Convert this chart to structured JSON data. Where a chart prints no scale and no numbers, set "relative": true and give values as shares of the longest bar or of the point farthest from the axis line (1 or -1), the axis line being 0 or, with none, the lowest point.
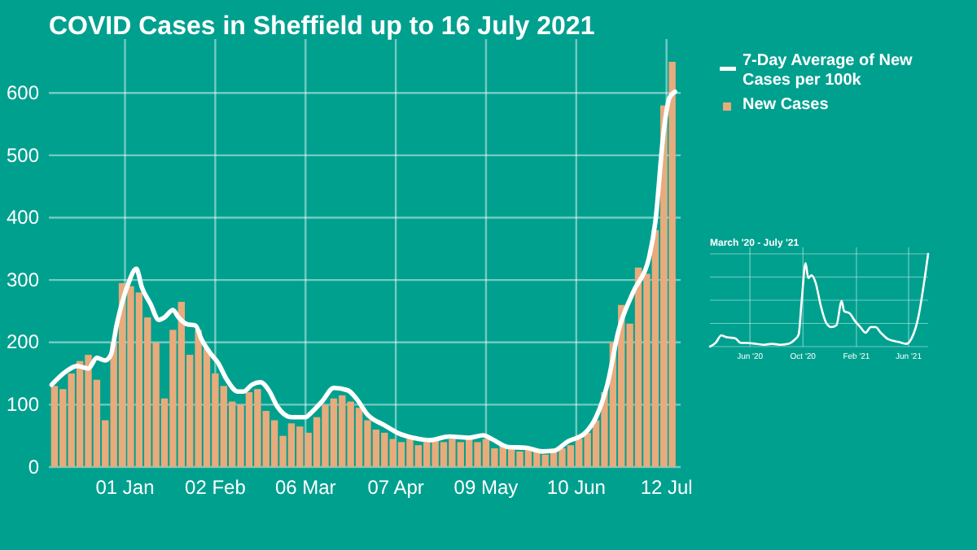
{
  "chart_data": [
    {
      "type": "bar",
      "title": "COVID Cases in Sheffield up to 16 July 2021",
      "xlim": [
        "2020-12-05",
        "2021-07-17"
      ],
      "xticks": [
        {
          "value": "2021-01-01",
          "label": "01 Jan"
        },
        {
          "value": "2021-02-02",
          "label": "02 Feb"
        },
        {
          "value": "2021-03-06",
          "label": "06 Mar"
        },
        {
          "value": "2021-04-07",
          "label": "07 Apr"
        },
        {
          "value": "2021-05-09",
          "label": "09 May"
        },
        {
          "value": "2021-06-10",
          "label": "10 Jun"
        },
        {
          "value": "2021-07-12",
          "label": "12 Jul"
        }
      ],
      "ylim": [
        0,
        650
      ],
      "yticks": [
        0,
        100,
        200,
        300,
        400,
        500,
        600
      ],
      "grid": true,
      "legend": "top right",
      "x": [
        "2020-12-07",
        "2020-12-10",
        "2020-12-13",
        "2020-12-16",
        "2020-12-19",
        "2020-12-22",
        "2020-12-25",
        "2020-12-28",
        "2020-12-31",
        "2021-01-03",
        "2021-01-06",
        "2021-01-09",
        "2021-01-12",
        "2021-01-15",
        "2021-01-18",
        "2021-01-21",
        "2021-01-24",
        "2021-01-27",
        "2021-01-30",
        "2021-02-02",
        "2021-02-05",
        "2021-02-08",
        "2021-02-11",
        "2021-02-14",
        "2021-02-17",
        "2021-02-20",
        "2021-02-23",
        "2021-02-26",
        "2021-03-01",
        "2021-03-04",
        "2021-03-07",
        "2021-03-10",
        "2021-03-13",
        "2021-03-16",
        "2021-03-19",
        "2021-03-22",
        "2021-03-25",
        "2021-03-28",
        "2021-03-31",
        "2021-04-03",
        "2021-04-06",
        "2021-04-09",
        "2021-04-12",
        "2021-04-15",
        "2021-04-18",
        "2021-04-21",
        "2021-04-24",
        "2021-04-27",
        "2021-04-30",
        "2021-05-03",
        "2021-05-06",
        "2021-05-09",
        "2021-05-12",
        "2021-05-15",
        "2021-05-18",
        "2021-05-21",
        "2021-05-24",
        "2021-05-27",
        "2021-05-30",
        "2021-06-02",
        "2021-06-05",
        "2021-06-08",
        "2021-06-11",
        "2021-06-14",
        "2021-06-17",
        "2021-06-20",
        "2021-06-23",
        "2021-06-26",
        "2021-06-29",
        "2021-07-02",
        "2021-07-05",
        "2021-07-08",
        "2021-07-11",
        "2021-07-14"
      ],
      "series": [
        {
          "name": "New Cases",
          "color": "#e8ab7c",
          "values": [
            130,
            125,
            150,
            170,
            180,
            140,
            75,
            200,
            295,
            290,
            280,
            240,
            200,
            110,
            220,
            265,
            180,
            220,
            190,
            150,
            130,
            105,
            100,
            120,
            125,
            90,
            75,
            50,
            70,
            65,
            55,
            80,
            100,
            110,
            115,
            105,
            95,
            75,
            60,
            55,
            45,
            40,
            45,
            35,
            40,
            45,
            40,
            45,
            40,
            45,
            40,
            45,
            30,
            35,
            30,
            25,
            30,
            25,
            20,
            25,
            30,
            35,
            45,
            55,
            75,
            120,
            200,
            260,
            230,
            320,
            310,
            380,
            580,
            650
          ]
        },
        {
          "name": "7-Day Average of New Cases per 100k",
          "type": "line",
          "color": "#ffffff",
          "x": [
            "2020-12-06",
            "2020-12-11",
            "2020-12-15",
            "2020-12-19",
            "2020-12-22",
            "2020-12-25",
            "2020-12-27",
            "2020-12-29",
            "2021-01-01",
            "2021-01-02",
            "2021-01-05",
            "2021-01-07",
            "2021-01-10",
            "2021-01-13",
            "2021-01-15",
            "2021-01-18",
            "2021-01-20",
            "2021-01-23",
            "2021-01-26",
            "2021-01-28",
            "2021-01-31",
            "2021-02-03",
            "2021-02-06",
            "2021-02-10",
            "2021-02-12",
            "2021-02-15",
            "2021-02-18",
            "2021-02-21",
            "2021-02-24",
            "2021-03-01",
            "2021-03-06",
            "2021-03-08",
            "2021-03-12",
            "2021-03-16",
            "2021-03-21",
            "2021-03-24",
            "2021-03-28",
            "2021-04-03",
            "2021-04-08",
            "2021-04-13",
            "2021-04-19",
            "2021-04-26",
            "2021-05-03",
            "2021-05-08",
            "2021-05-11",
            "2021-05-17",
            "2021-05-23",
            "2021-05-29",
            "2021-06-02",
            "2021-06-07",
            "2021-06-13",
            "2021-06-17",
            "2021-06-21",
            "2021-06-25",
            "2021-06-30",
            "2021-07-06",
            "2021-07-08",
            "2021-07-11",
            "2021-07-13",
            "2021-07-15"
          ],
          "values": [
            132,
            153,
            162,
            158,
            175,
            171,
            180,
            227,
            279,
            292,
            318,
            288,
            262,
            236,
            240,
            252,
            240,
            229,
            227,
            206,
            184,
            167,
            141,
            121,
            121,
            132,
            136,
            123,
            97,
            80,
            80,
            87,
            106,
            127,
            123,
            110,
            84,
            67,
            54,
            47,
            43,
            49,
            47,
            51,
            45,
            32,
            31,
            25,
            26,
            41,
            54,
            80,
            132,
            219,
            279,
            340,
            392,
            539,
            592,
            602
          ]
        }
      ]
    },
    {
      "type": "line",
      "title": "March '20 - July '21",
      "relative": true,
      "grid": true,
      "xlim": [
        "2020-03-01",
        "2021-07-16"
      ],
      "xticks": [
        {
          "value": "2020-06-01",
          "label": "Jun '20"
        },
        {
          "value": "2020-10-01",
          "label": "Oct '20"
        },
        {
          "value": "2021-02-01",
          "label": "Feb '21"
        },
        {
          "value": "2021-06-01",
          "label": "Jun '21"
        }
      ],
      "series": [
        {
          "color": "#ffffff",
          "x": [
            "2020-03-01",
            "2020-03-14",
            "2020-03-27",
            "2020-04-09",
            "2020-04-28",
            "2020-05-11",
            "2020-05-26",
            "2020-06-14",
            "2020-07-03",
            "2020-07-22",
            "2020-08-10",
            "2020-08-29",
            "2020-09-11",
            "2020-09-21",
            "2020-09-28",
            "2020-10-07",
            "2020-10-13",
            "2020-10-21",
            "2020-10-30",
            "2020-11-11",
            "2020-11-23",
            "2020-12-05",
            "2020-12-17",
            "2020-12-29",
            "2021-01-04",
            "2021-01-16",
            "2021-01-28",
            "2021-02-10",
            "2021-02-22",
            "2021-03-06",
            "2021-03-17",
            "2021-03-29",
            "2021-04-15",
            "2021-05-09",
            "2021-05-27",
            "2021-06-09",
            "2021-06-24",
            "2021-07-05",
            "2021-07-16"
          ],
          "values": [
            0,
            0.04,
            0.12,
            0.1,
            0.09,
            0.04,
            0.04,
            0.03,
            0.02,
            0.03,
            0.02,
            0.03,
            0.07,
            0.13,
            0.49,
            0.9,
            0.74,
            0.77,
            0.69,
            0.44,
            0.26,
            0.21,
            0.23,
            0.49,
            0.38,
            0.36,
            0.28,
            0.21,
            0.15,
            0.21,
            0.21,
            0.15,
            0.08,
            0.05,
            0.03,
            0.1,
            0.33,
            0.64,
            1
          ]
        }
      ]
    }
  ]
}
